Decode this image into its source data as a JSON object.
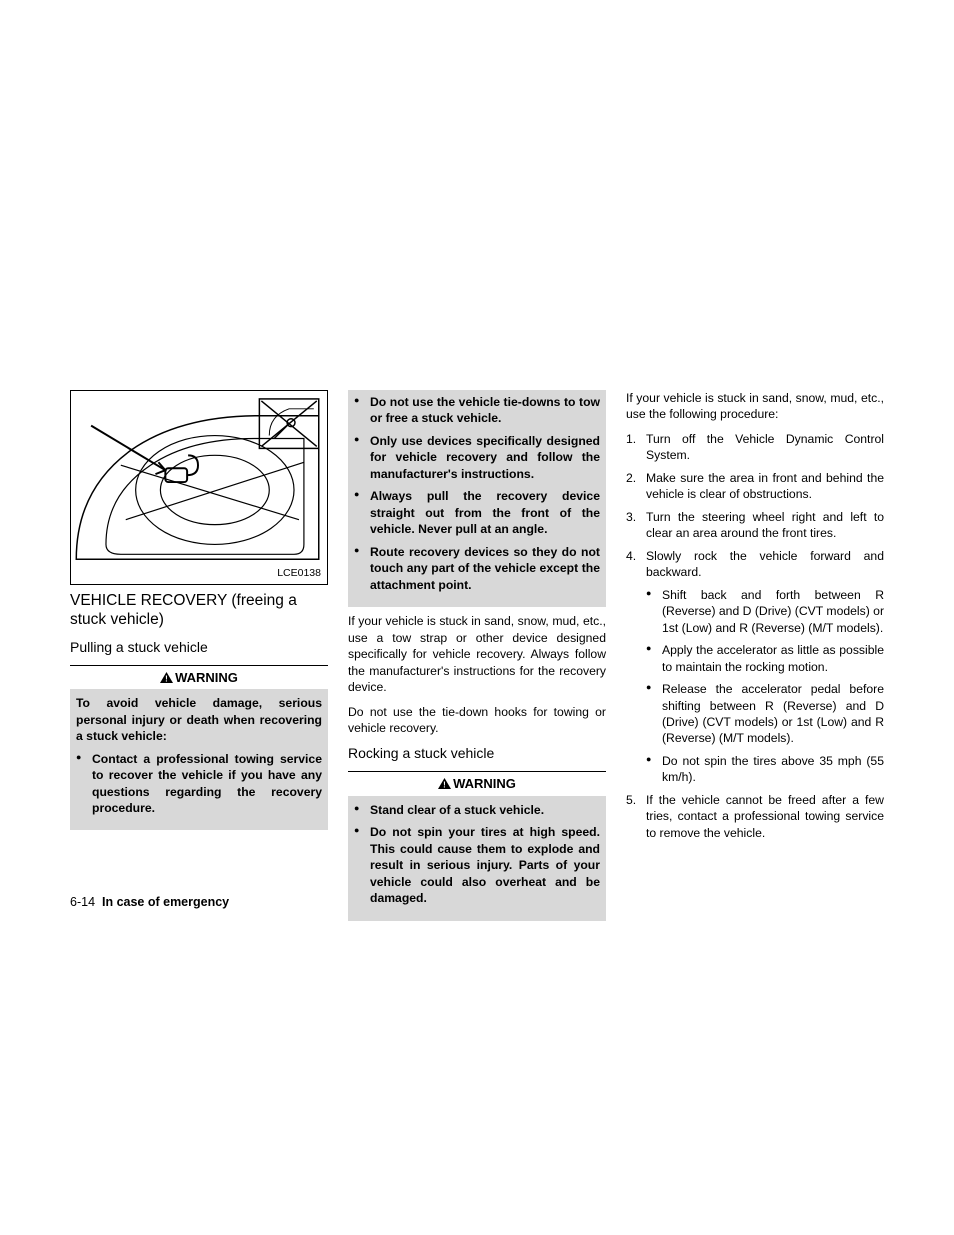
{
  "figure": {
    "label": "LCE0138"
  },
  "col1": {
    "section_title": "VEHICLE RECOVERY (freeing a stuck vehicle)",
    "sub_title": "Pulling a stuck vehicle",
    "warning_label": "WARNING",
    "warning_intro": "To avoid vehicle damage, serious personal injury or death when recovering a stuck vehicle:",
    "warning_bullets": [
      "Contact a professional towing service to recover the vehicle if you have any questions regarding the recovery procedure."
    ]
  },
  "col2": {
    "warning_bullets_cont": [
      "Do not use the vehicle tie-downs to tow or free a stuck vehicle.",
      "Only use devices specifically designed for vehicle recovery and follow the manufacturer's instructions.",
      "Always pull the recovery device straight out from the front of the vehicle. Never pull at an angle.",
      "Route recovery devices so they do not touch any part of the vehicle except the attachment point."
    ],
    "para1": "If your vehicle is stuck in sand, snow, mud, etc., use a tow strap or other device designed specifically for vehicle recovery. Always follow the manufacturer's instructions for the recovery device.",
    "para2": "Do not use the tie-down hooks for towing or vehicle recovery.",
    "sub_title": "Rocking a stuck vehicle",
    "warning_label": "WARNING",
    "warning_bullets2": [
      "Stand clear of a stuck vehicle.",
      "Do not spin your tires at high speed. This could cause them to explode and result in serious injury. Parts of your vehicle could also overheat and be damaged."
    ]
  },
  "col3": {
    "intro": "If your vehicle is stuck in sand, snow, mud, etc., use the following procedure:",
    "steps": [
      {
        "text": "Turn off the Vehicle Dynamic Control System."
      },
      {
        "text": "Make sure the area in front and behind the vehicle is clear of obstructions."
      },
      {
        "text": "Turn the steering wheel right and left to clear an area around the front tires."
      },
      {
        "text": "Slowly rock the vehicle forward and backward.",
        "sub": [
          "Shift back and forth between R (Reverse) and D (Drive) (CVT models) or 1st (Low) and R (Reverse) (M/T models).",
          "Apply the accelerator as little as possible to maintain the rocking motion.",
          "Release the accelerator pedal before shifting between R (Reverse) and D (Drive) (CVT models) or 1st (Low) and R (Reverse) (M/T models).",
          "Do not spin the tires above 35 mph (55 km/h)."
        ]
      },
      {
        "text": "If the vehicle cannot be freed after a few tries, contact a professional towing service to remove the vehicle."
      }
    ]
  },
  "footer": {
    "page": "6-14",
    "section": "In case of emergency"
  }
}
